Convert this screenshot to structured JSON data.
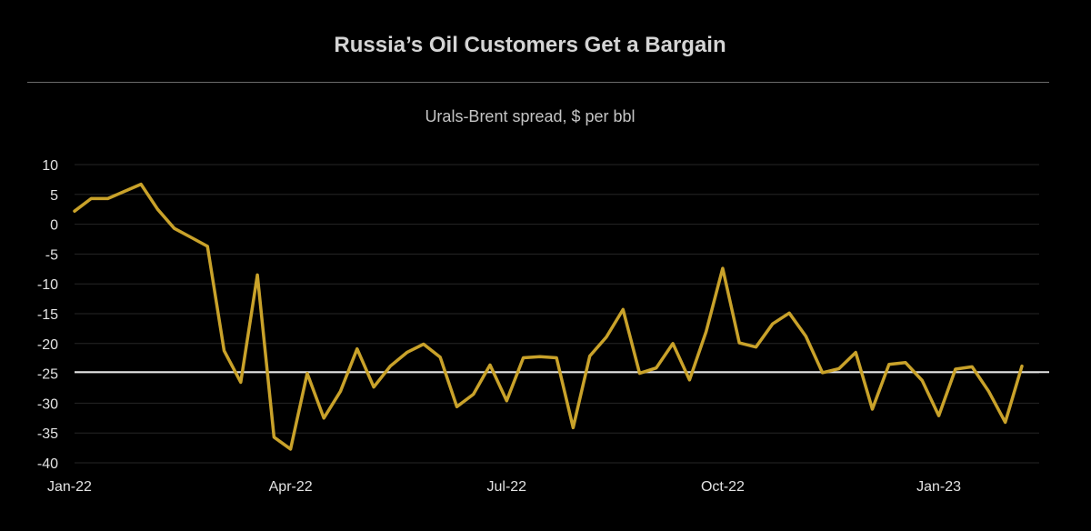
{
  "chart_data": {
    "type": "line",
    "title": "Russia’s Oil Customers Get a Bargain",
    "subtitle": "Urals-Brent spread, $ per bbl",
    "xlabel": "",
    "ylabel": "",
    "ylim": [
      -40,
      10
    ],
    "yticks": [
      10,
      5,
      0,
      -5,
      -10,
      -15,
      -20,
      -25,
      -30,
      -35,
      -40
    ],
    "ytick_labels": [
      "10",
      "5",
      "0",
      "-5",
      "-10",
      "-15",
      "-20",
      "-25",
      "-30",
      "-35",
      "-40"
    ],
    "xtick_labels": [
      "Jan-22",
      "Apr-22",
      "Jul-22",
      "Oct-22",
      "Jan-23"
    ],
    "xtick_index": [
      0,
      13,
      26,
      39,
      52
    ],
    "grid": true,
    "reference_line": {
      "value": -24.8,
      "color": "#e6e6e6"
    },
    "series": [
      {
        "name": "Urals-Brent spread",
        "color": "#c9a22a",
        "values": [
          2.2,
          4.3,
          4.3,
          5.5,
          6.7,
          2.5,
          -0.7,
          -2.2,
          -3.7,
          -21.2,
          -26.5,
          -8.5,
          -35.7,
          -37.7,
          -25.0,
          -32.5,
          -28.0,
          -20.9,
          -27.3,
          -23.8,
          -21.5,
          -20.1,
          -22.3,
          -30.6,
          -28.5,
          -23.6,
          -29.6,
          -22.4,
          -22.2,
          -22.4,
          -34.1,
          -22.1,
          -18.9,
          -14.3,
          -25.0,
          -24.1,
          -20.0,
          -26.1,
          -18.0,
          -7.4,
          -19.9,
          -20.6,
          -16.7,
          -14.9,
          -18.8,
          -24.9,
          -24.2,
          -21.5,
          -31.0,
          -23.5,
          -23.2,
          -26.2,
          -32.1,
          -24.3,
          -23.9,
          -28.0,
          -33.2,
          -23.8
        ]
      }
    ]
  }
}
